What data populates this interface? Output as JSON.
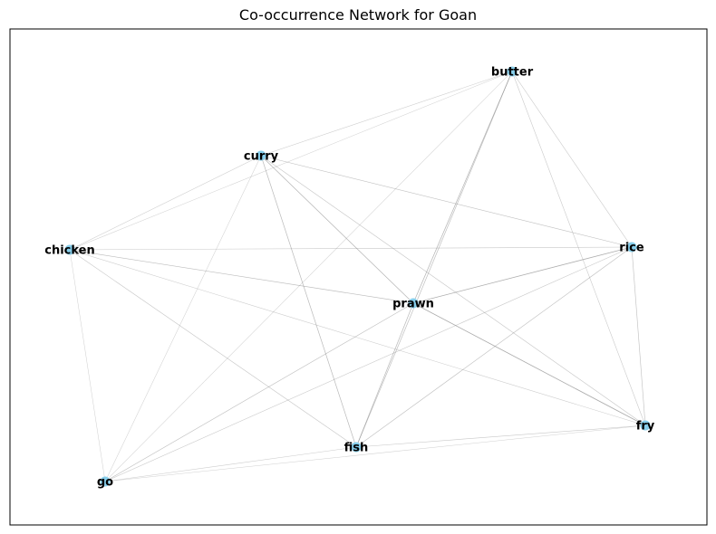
{
  "title": "Co-occurrence Network for Goan",
  "colors": {
    "node": "#87ceeb",
    "edge": "#808080",
    "frame": "#000000",
    "label": "#000000"
  },
  "nodes": [
    {
      "id": "butter",
      "label": "butter"
    },
    {
      "id": "curry",
      "label": "curry"
    },
    {
      "id": "chicken",
      "label": "chicken"
    },
    {
      "id": "rice",
      "label": "rice"
    },
    {
      "id": "prawn",
      "label": "prawn"
    },
    {
      "id": "fry",
      "label": "fry"
    },
    {
      "id": "fish",
      "label": "fish"
    },
    {
      "id": "go",
      "label": "go"
    }
  ],
  "edges": [
    {
      "source": "butter",
      "target": "curry",
      "weight": 0.25
    },
    {
      "source": "butter",
      "target": "chicken",
      "weight": 0.2
    },
    {
      "source": "butter",
      "target": "prawn",
      "weight": 0.55
    },
    {
      "source": "butter",
      "target": "fish",
      "weight": 0.45
    },
    {
      "source": "butter",
      "target": "rice",
      "weight": 0.3
    },
    {
      "source": "butter",
      "target": "fry",
      "weight": 0.3
    },
    {
      "source": "butter",
      "target": "go",
      "weight": 0.2
    },
    {
      "source": "curry",
      "target": "chicken",
      "weight": 0.25
    },
    {
      "source": "curry",
      "target": "prawn",
      "weight": 0.55
    },
    {
      "source": "curry",
      "target": "fish",
      "weight": 0.5
    },
    {
      "source": "curry",
      "target": "rice",
      "weight": 0.4
    },
    {
      "source": "curry",
      "target": "fry",
      "weight": 0.35
    },
    {
      "source": "curry",
      "target": "go",
      "weight": 0.2
    },
    {
      "source": "chicken",
      "target": "rice",
      "weight": 0.3
    },
    {
      "source": "chicken",
      "target": "prawn",
      "weight": 0.45
    },
    {
      "source": "chicken",
      "target": "fish",
      "weight": 0.35
    },
    {
      "source": "chicken",
      "target": "fry",
      "weight": 0.25
    },
    {
      "source": "chicken",
      "target": "go",
      "weight": 0.2
    },
    {
      "source": "rice",
      "target": "prawn",
      "weight": 0.65
    },
    {
      "source": "rice",
      "target": "fish",
      "weight": 0.4
    },
    {
      "source": "rice",
      "target": "fry",
      "weight": 0.4
    },
    {
      "source": "rice",
      "target": "go",
      "weight": 0.3
    },
    {
      "source": "prawn",
      "target": "fry",
      "weight": 0.7
    },
    {
      "source": "prawn",
      "target": "fish",
      "weight": 0.5
    },
    {
      "source": "prawn",
      "target": "go",
      "weight": 0.4
    },
    {
      "source": "fish",
      "target": "fry",
      "weight": 0.3
    },
    {
      "source": "fish",
      "target": "go",
      "weight": 0.25
    },
    {
      "source": "go",
      "target": "fry",
      "weight": 0.2
    }
  ]
}
